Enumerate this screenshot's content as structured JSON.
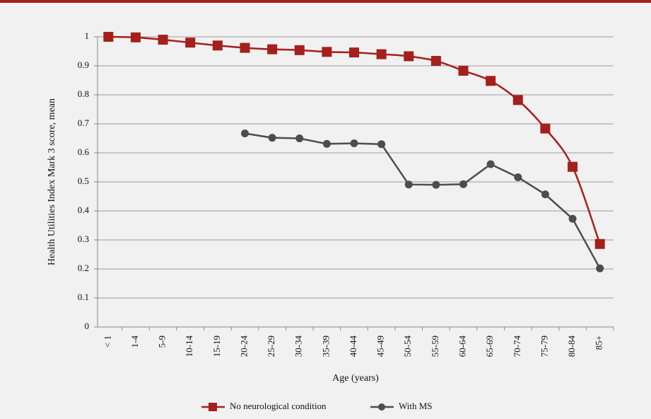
{
  "chart_data": {
    "type": "line",
    "y_label": "Health Utilities Index Mark 3 score, mean",
    "x_label": "Age (years)",
    "categories": [
      "< 1",
      "1-4",
      "5-9",
      "10-14",
      "15-19",
      "20-24",
      "25-29",
      "30-34",
      "35-39",
      "40-44",
      "45-49",
      "50-54",
      "55-59",
      "60-64",
      "65-69",
      "70-74",
      "75-79",
      "80-84",
      "85+"
    ],
    "series": [
      {
        "name": "No neurological condition",
        "color": "#a51f1c",
        "marker": "square",
        "smooth": true,
        "values": [
          1.0,
          0.998,
          0.99,
          0.98,
          0.97,
          0.962,
          0.957,
          0.954,
          0.948,
          0.946,
          0.94,
          0.933,
          0.917,
          0.883,
          0.848,
          0.782,
          0.684,
          0.552,
          0.286
        ]
      },
      {
        "name": "With MS",
        "color": "#4d4d4d",
        "marker": "circle",
        "smooth": false,
        "values": [
          null,
          null,
          null,
          null,
          null,
          0.667,
          0.652,
          0.65,
          0.631,
          0.633,
          0.63,
          0.491,
          0.49,
          0.492,
          0.561,
          0.516,
          0.457,
          0.373,
          0.202
        ]
      }
    ],
    "ylim": [
      0,
      1
    ],
    "yticks": [
      0,
      0.1,
      0.2,
      0.3,
      0.4,
      0.5,
      0.6,
      0.7,
      0.8,
      0.9,
      1
    ],
    "grid": true,
    "legend": "bottom"
  }
}
